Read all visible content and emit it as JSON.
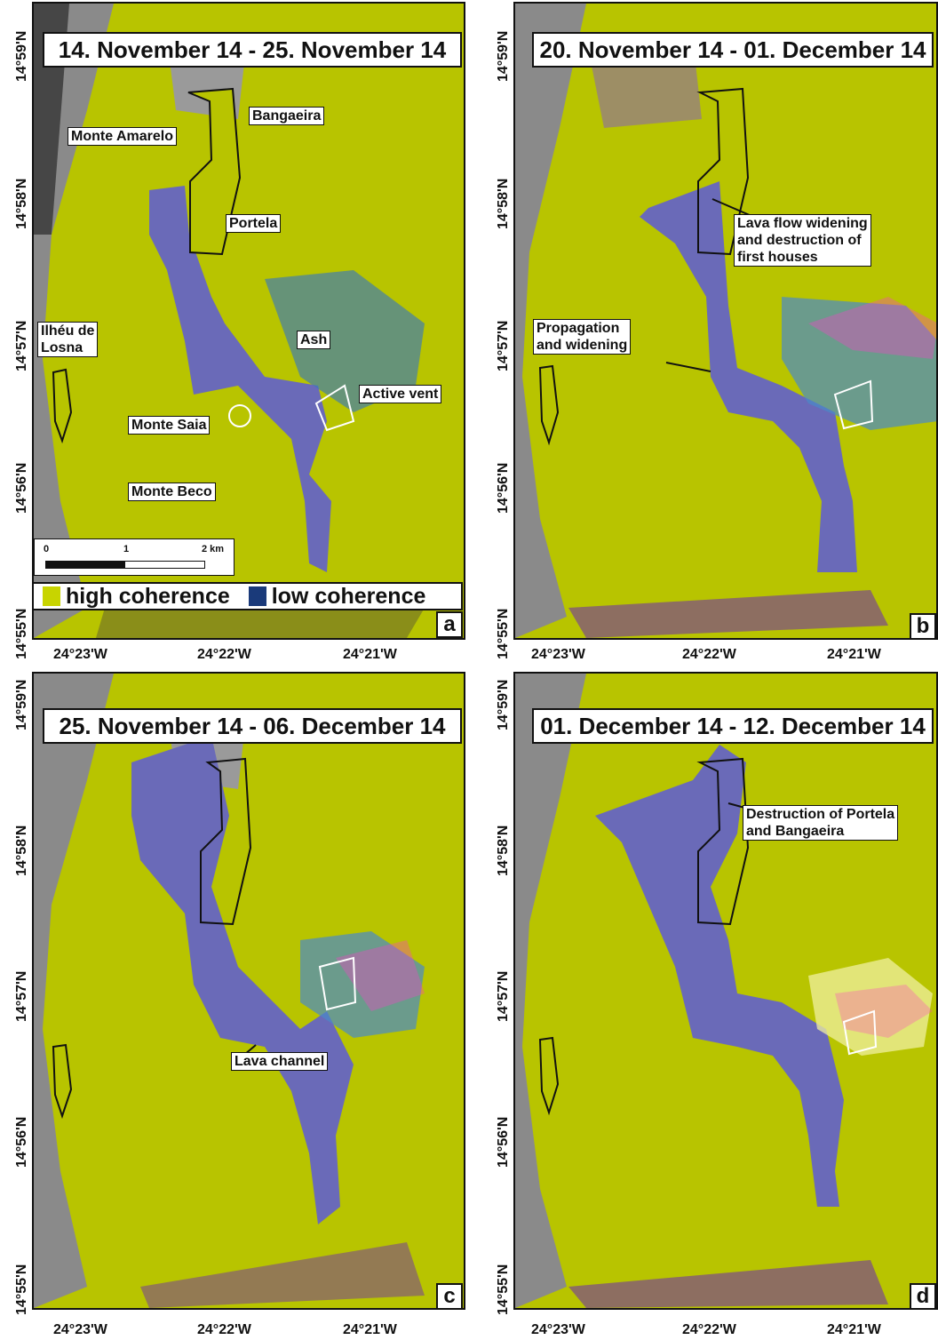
{
  "lat_ticks": [
    "14°59'N",
    "14°58'N",
    "14°57'N",
    "14°56'N",
    "14°55'N"
  ],
  "lon_ticks": [
    "24°23'W",
    "24°22'W",
    "24°21'W"
  ],
  "colors": {
    "high_coherence": "#c8d400",
    "low_coherence": "#1a3a7a",
    "lava_flow": "#6a6ab8",
    "hillshade": "#9a9a9a",
    "magenta": "#ff3cc8",
    "white_outline": "#ffffff"
  },
  "panels": {
    "a": {
      "letter": "a",
      "title": "14. November 14 - 25. November 14",
      "labels": {
        "bangaeira": "Bangaeira",
        "monte_amarelo": "Monte Amarelo",
        "portela": "Portela",
        "ilheu": "Ilhéu de\nLosna",
        "ash": "Ash",
        "active_vent": "Active vent",
        "monte_saia": "Monte Saia",
        "monte_beco": "Monte Beco"
      },
      "scale": {
        "zero": "0",
        "one": "1",
        "two": "2 km"
      },
      "legend": {
        "high": "high coherence",
        "low": "low coherence"
      }
    },
    "b": {
      "letter": "b",
      "title": "20. November 14 - 01. December 14",
      "labels": {
        "lava_widening": "Lava flow widening\nand destruction of\nfirst houses",
        "propagation": "Propagation\nand widening"
      }
    },
    "c": {
      "letter": "c",
      "title": "25. November 14 - 06. December 14",
      "labels": {
        "lava_channel": "Lava channel"
      }
    },
    "d": {
      "letter": "d",
      "title": "01. December 14 - 12. December 14",
      "labels": {
        "destruction": "Destruction of Portela\nand Bangaeira"
      }
    }
  }
}
